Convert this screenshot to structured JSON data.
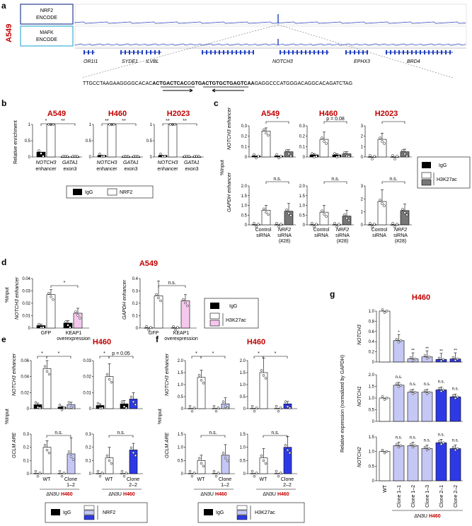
{
  "figure": {
    "panels": {
      "a": "a",
      "b": "b",
      "c": "c",
      "d": "d",
      "e": "e",
      "f": "f",
      "g": "g"
    },
    "a": {
      "cell_line": "A549",
      "track1": "NRF2\nENCODE",
      "track1_l1": "NRF2",
      "track1_l2": "ENCODE",
      "track2_l1": "MAFK",
      "track2_l2": "ENCODE",
      "genes": [
        "OR1I1",
        "SYDE1",
        "ILVBL",
        "NOTCH3",
        "EPHX3",
        "BRD4"
      ],
      "seq_left": "TTGCCTAAGAAGGGGCACAC",
      "seq_bold1": "ACTGACTCAC",
      "seq_mid": "G",
      "seq_bold2": "GTGACTGTGCTGAGTCAA",
      "seq_right": "GAGGCCCATGGGACAGGCACAGATCTAG"
    },
    "colors": {
      "igg": "#000000",
      "nrf2": "#ffffff",
      "h3k27ac_dark": "#777777",
      "pink": "#f5c8ee",
      "lightblue": "#c5c8f5",
      "blue": "#2e39e6",
      "title_red": "#c00000",
      "track_blue": "#1f3ebd"
    },
    "b": {
      "ylabel": "Relative enrichment",
      "legend": [
        "IgG",
        "NRF2"
      ],
      "charts": [
        {
          "title": "A549",
          "categories": [
            "NOTCH3 enhancer",
            "GATA1 exon3"
          ],
          "igg": [
            0.15,
            0.0
          ],
          "target": [
            1.0,
            0.0
          ],
          "sig": [
            "*",
            "**"
          ]
        },
        {
          "title": "H460",
          "categories": [
            "NOTCH3 enhancer",
            "GATA1 exon3"
          ],
          "igg": [
            0.05,
            0.0
          ],
          "target": [
            1.0,
            0.0
          ],
          "sig": [
            "**",
            "**"
          ]
        },
        {
          "title": "H2023",
          "categories": [
            "NOTCH3 enhancer",
            "GATA1 exon3"
          ],
          "igg": [
            0.05,
            0.0
          ],
          "target": [
            1.0,
            0.0
          ],
          "sig": [
            "**",
            "**"
          ]
        }
      ],
      "yticks": [
        "0",
        "0.5",
        "1"
      ]
    },
    "c": {
      "titles": [
        "A549",
        "H460",
        "H2023"
      ],
      "ylabel": "%Input",
      "row_labels": [
        "NOTCH3 enhancer",
        "GAPDH enhancer"
      ],
      "xlabels": [
        "Control siRNA",
        "NRF2 siRNA (#28)"
      ],
      "legend": [
        "IgG",
        "H3K27ac"
      ],
      "p_value": "p = 0.08",
      "sig": "*",
      "ns": "n.s."
    },
    "d": {
      "title": "A549",
      "ylabel": "%Input",
      "charts": [
        "NOTCH3 enhancer",
        "GAPDH enhancer"
      ],
      "xlabels": [
        "GFP",
        "KEAP1 overexpression"
      ],
      "legend": [
        "IgG",
        "H3K27ac"
      ],
      "sig": "*",
      "ns": "n.s."
    },
    "e": {
      "title": "H460",
      "ylabel": "%Input",
      "rows": [
        "NOTCH3 enhancer",
        "GCLM ARE"
      ],
      "xlabels": [
        "WT",
        "Clone 1–2",
        "WT",
        "Clone 2–2"
      ],
      "group": "ΔN3U H460",
      "legend": [
        "IgG",
        "NRF2"
      ],
      "p_value": "p = 0.05"
    },
    "f": {
      "title": "H460",
      "ylabel": "%Input",
      "rows": [
        "NOTCH3 enhancer",
        "GCLM ARE"
      ],
      "xlabels": [
        "WT",
        "Clone 1–2",
        "WT",
        "Clone 2–2"
      ],
      "group": "ΔN3U H460",
      "legend": [
        "IgG",
        "H3K27ac"
      ]
    },
    "g": {
      "title": "H460",
      "ylabel": "Relative expression (normalized by GAPDH)",
      "rows": [
        "NOTCH3",
        "NOTCH1",
        "NOTCH2"
      ],
      "xlabels": [
        "WT",
        "Clone 1–1",
        "Clone 1–2",
        "Clone 1–3",
        "Clone 2–1",
        "Clone 2–2"
      ],
      "group": "ΔN3U H460",
      "yticks": [
        "0",
        "0.2",
        "0.4",
        "0.6",
        "0.8",
        "1.0"
      ]
    }
  },
  "chart_data": [
    {
      "type": "bar",
      "title": "A549",
      "categories": [
        "NOTCH3 enhancer",
        "GATA1 exon3"
      ],
      "ylabel": "Relative enrichment",
      "ylim": [
        0,
        1
      ],
      "series": [
        {
          "name": "IgG",
          "values": [
            0.15,
            0.0
          ]
        },
        {
          "name": "NRF2",
          "values": [
            1.0,
            0.0
          ]
        }
      ]
    },
    {
      "type": "bar",
      "title": "H460",
      "categories": [
        "NOTCH3 enhancer",
        "GATA1 exon3"
      ],
      "ylabel": "Relative enrichment",
      "ylim": [
        0,
        1
      ],
      "series": [
        {
          "name": "IgG",
          "values": [
            0.05,
            0.0
          ]
        },
        {
          "name": "NRF2",
          "values": [
            1.0,
            0.0
          ]
        }
      ]
    },
    {
      "type": "bar",
      "title": "H2023",
      "categories": [
        "NOTCH3 enhancer",
        "GATA1 exon3"
      ],
      "ylabel": "Relative enrichment",
      "ylim": [
        0,
        1
      ],
      "series": [
        {
          "name": "IgG",
          "values": [
            0.05,
            0.0
          ]
        },
        {
          "name": "NRF2",
          "values": [
            1.0,
            0.0
          ]
        }
      ]
    },
    {
      "type": "bar",
      "title": "H460",
      "categories": [
        "WT",
        "Clone 1–1",
        "Clone 1–2",
        "Clone 1–3",
        "Clone 2–1",
        "Clone 2–2"
      ],
      "ylabel": "NOTCH3",
      "ylim": [
        0,
        1
      ],
      "values": [
        1.0,
        0.42,
        0.06,
        0.1,
        0.05,
        0.06
      ]
    },
    {
      "type": "bar",
      "title": "H460",
      "categories": [
        "WT",
        "Clone 1–1",
        "Clone 1–2",
        "Clone 1–3",
        "Clone 2–1",
        "Clone 2–2"
      ],
      "ylabel": "NOTCH1",
      "ylim": [
        0,
        2
      ],
      "values": [
        1.0,
        1.55,
        1.25,
        1.25,
        1.35,
        1.05
      ]
    },
    {
      "type": "bar",
      "title": "H460",
      "categories": [
        "WT",
        "Clone 1–1",
        "Clone 1–2",
        "Clone 1–3",
        "Clone 2–1",
        "Clone 2–2"
      ],
      "ylabel": "NOTCH2",
      "ylim": [
        0,
        1.5
      ],
      "values": [
        1.0,
        1.2,
        1.2,
        1.1,
        1.3,
        1.1
      ]
    }
  ]
}
